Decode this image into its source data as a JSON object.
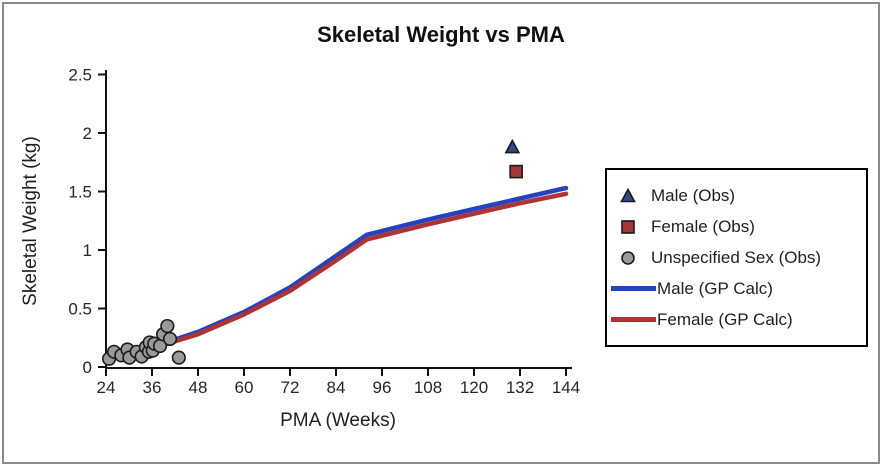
{
  "title": "Skeletal Weight vs PMA",
  "axes": {
    "x": {
      "label": "PMA (Weeks)",
      "min": 24,
      "max": 144,
      "step": 12
    },
    "y": {
      "label": "Skeletal Weight (kg)",
      "min": 0,
      "max": 2.5,
      "step": 0.5
    }
  },
  "colors": {
    "male_obs": "#2e4a8f",
    "female_obs": "#a93636",
    "unspecified_obs": "#9a9a9a",
    "male_line": "#2343c4",
    "female_line": "#b03333",
    "axis": "#111111",
    "marker_edge": "#1a1a1a"
  },
  "legend": {
    "items": [
      {
        "label": "Male (Obs)",
        "marker": "triangle",
        "color": "#2e4a8f"
      },
      {
        "label": "Female (Obs)",
        "marker": "square",
        "color": "#a93636"
      },
      {
        "label": "Unspecified Sex (Obs)",
        "marker": "circle",
        "color": "#9a9a9a"
      },
      {
        "label": "Male (GP Calc)",
        "marker": "line",
        "color": "#2343c4"
      },
      {
        "label": "Female (GP Calc)",
        "marker": "line",
        "color": "#b03333"
      }
    ]
  },
  "chart_data": {
    "type": "scatter",
    "title": "Skeletal Weight vs PMA",
    "xlabel": "PMA (Weeks)",
    "ylabel": "Skeletal Weight (kg)",
    "xlim": [
      24,
      144
    ],
    "ylim": [
      0,
      2.5
    ],
    "x_ticks": [
      24,
      36,
      48,
      60,
      72,
      84,
      96,
      108,
      120,
      132,
      144
    ],
    "y_ticks": [
      0,
      0.5,
      1,
      1.5,
      2,
      2.5
    ],
    "grid": false,
    "legend_position": "right-outside",
    "series": [
      {
        "name": "Male (GP Calc)",
        "type": "line",
        "color": "#2343c4",
        "width": 4.5,
        "points": [
          [
            24,
            0.08
          ],
          [
            36,
            0.17
          ],
          [
            48,
            0.3
          ],
          [
            60,
            0.47
          ],
          [
            72,
            0.68
          ],
          [
            84,
            0.95
          ],
          [
            92,
            1.13
          ],
          [
            108,
            1.26
          ],
          [
            120,
            1.35
          ],
          [
            132,
            1.44
          ],
          [
            144,
            1.53
          ]
        ]
      },
      {
        "name": "Female (GP Calc)",
        "type": "line",
        "color": "#b03333",
        "width": 4.5,
        "points": [
          [
            24,
            0.07
          ],
          [
            36,
            0.16
          ],
          [
            48,
            0.28
          ],
          [
            60,
            0.45
          ],
          [
            72,
            0.65
          ],
          [
            84,
            0.91
          ],
          [
            92,
            1.09
          ],
          [
            108,
            1.22
          ],
          [
            120,
            1.31
          ],
          [
            132,
            1.4
          ],
          [
            144,
            1.48
          ]
        ]
      },
      {
        "name": "Unspecified Sex (Obs)",
        "type": "scatter",
        "marker": "circle",
        "color": "#9a9a9a",
        "points": [
          [
            24.8,
            0.07
          ],
          [
            26.1,
            0.13
          ],
          [
            28,
            0.1
          ],
          [
            29.6,
            0.15
          ],
          [
            30.1,
            0.08
          ],
          [
            32,
            0.13
          ],
          [
            33.3,
            0.09
          ],
          [
            34.4,
            0.17
          ],
          [
            35.2,
            0.13
          ],
          [
            35.4,
            0.21
          ],
          [
            36.2,
            0.14
          ],
          [
            36.6,
            0.2
          ],
          [
            38.1,
            0.18
          ],
          [
            38.9,
            0.28
          ],
          [
            40,
            0.35
          ],
          [
            40.7,
            0.24
          ],
          [
            43,
            0.08
          ]
        ]
      },
      {
        "name": "Male (Obs)",
        "type": "scatter",
        "marker": "triangle",
        "color": "#2e4a8f",
        "points": [
          [
            130,
            1.88
          ]
        ]
      },
      {
        "name": "Female (Obs)",
        "type": "scatter",
        "marker": "square",
        "color": "#a93636",
        "points": [
          [
            131,
            1.67
          ]
        ]
      }
    ]
  }
}
